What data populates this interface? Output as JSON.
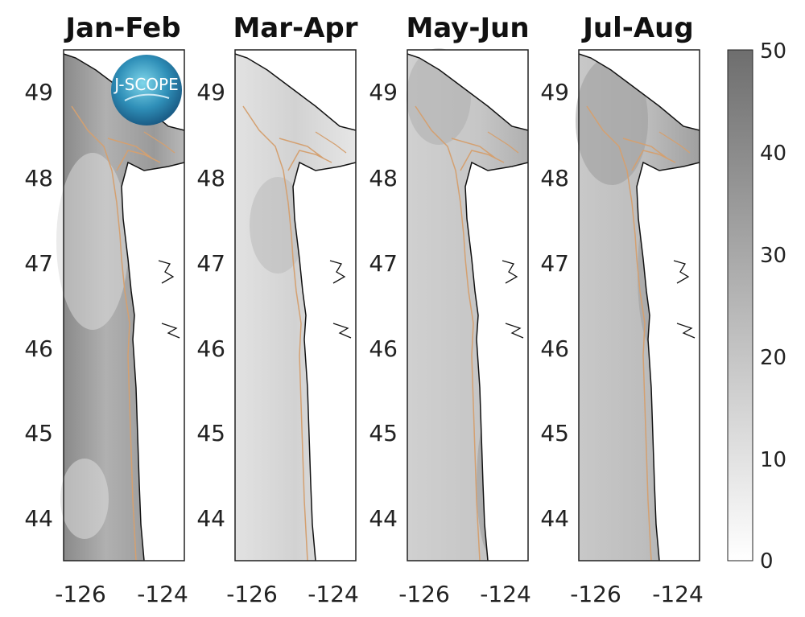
{
  "panels": [
    {
      "title": "Jan-Feb"
    },
    {
      "title": "Mar-Apr"
    },
    {
      "title": "May-Jun"
    },
    {
      "title": "Jul-Aug"
    }
  ],
  "lat_ticks": [
    "49",
    "48",
    "47",
    "46",
    "45",
    "44"
  ],
  "lon_ticks": [
    "-126",
    "-124"
  ],
  "colorbar": {
    "ticks": [
      "50",
      "40",
      "30",
      "20",
      "10",
      "0"
    ],
    "range": [
      0,
      50
    ],
    "color_low": "#ffffff",
    "color_high": "#6e6e6e"
  },
  "logo": {
    "text": "J-SCOPE"
  },
  "colors": {
    "coastline": "#111111",
    "contour": "#d4a070",
    "land": "#ffffff"
  }
}
